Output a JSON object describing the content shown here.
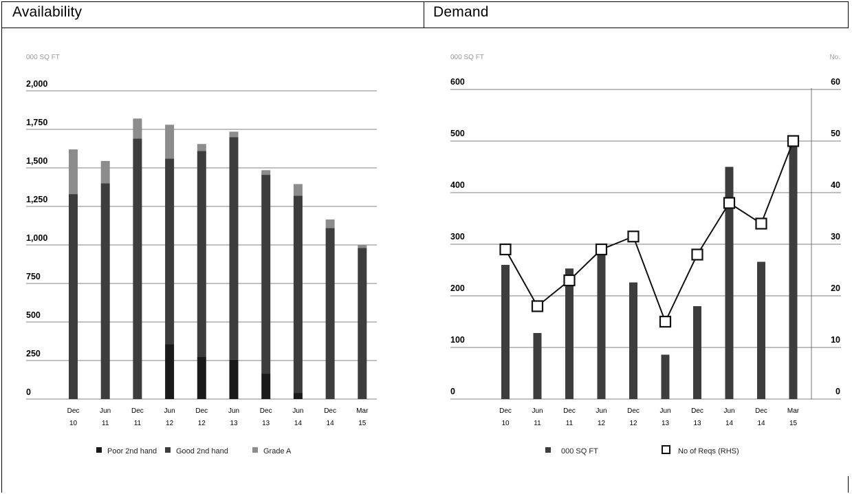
{
  "panels": {
    "availability_title": "Availability",
    "demand_title": "Demand"
  },
  "chart_data": [
    {
      "type": "bar",
      "stacked": true,
      "title": "Availability",
      "ylabel": "000 SQ FT",
      "ylim": [
        0,
        2000
      ],
      "yticks": [
        "0",
        "250",
        "500",
        "750",
        "1,000",
        "1,250",
        "1,500",
        "1,750",
        "2,000"
      ],
      "categories": [
        [
          "Dec",
          "10"
        ],
        [
          "Jun",
          "11"
        ],
        [
          "Dec",
          "11"
        ],
        [
          "Jun",
          "12"
        ],
        [
          "Dec",
          "12"
        ],
        [
          "Jun",
          "13"
        ],
        [
          "Dec",
          "13"
        ],
        [
          "Jun",
          "14"
        ],
        [
          "Dec",
          "14"
        ],
        [
          "Mar",
          "15"
        ]
      ],
      "series": [
        {
          "name": "Poor 2nd hand",
          "color": "#1a1a1a",
          "values": [
            0,
            0,
            0,
            355,
            275,
            255,
            165,
            40,
            0,
            0
          ]
        },
        {
          "name": "Good 2nd hand",
          "color": "#3d3d3d",
          "values": [
            1330,
            1400,
            1690,
            1205,
            1335,
            1445,
            1290,
            1280,
            1110,
            980
          ]
        },
        {
          "name": "Grade A",
          "color": "#8c8c8c",
          "values": [
            290,
            145,
            130,
            220,
            45,
            35,
            30,
            75,
            55,
            20
          ]
        }
      ],
      "grid": true,
      "legend": "bottom"
    },
    {
      "type": "bar",
      "title": "Demand",
      "ylabel": "000 SQ FT",
      "ylabel_right": "No.",
      "ylim": [
        0,
        600
      ],
      "ylim_right": [
        0,
        60
      ],
      "yticks": [
        "0",
        "100",
        "200",
        "300",
        "400",
        "500",
        "600"
      ],
      "yticks_right": [
        "0",
        "10",
        "20",
        "30",
        "40",
        "50",
        "60"
      ],
      "categories": [
        [
          "Dec",
          "10"
        ],
        [
          "Jun",
          "11"
        ],
        [
          "Dec",
          "11"
        ],
        [
          "Jun",
          "12"
        ],
        [
          "Dec",
          "12"
        ],
        [
          "Jun",
          "13"
        ],
        [
          "Dec",
          "13"
        ],
        [
          "Jun",
          "14"
        ],
        [
          "Dec",
          "14"
        ],
        [
          "Mar",
          "15"
        ]
      ],
      "series": [
        {
          "name": "000 SQ FT",
          "type": "bar",
          "color": "#3d3d3d",
          "values": [
            260,
            128,
            253,
            298,
            226,
            86,
            180,
            450,
            266,
            490
          ]
        },
        {
          "name": "No of Reqs (RHS)",
          "type": "line",
          "axis": "right",
          "values": [
            29,
            18,
            23,
            29,
            31.5,
            15,
            28,
            38,
            34,
            50
          ]
        }
      ],
      "grid": true,
      "legend": "bottom"
    }
  ]
}
